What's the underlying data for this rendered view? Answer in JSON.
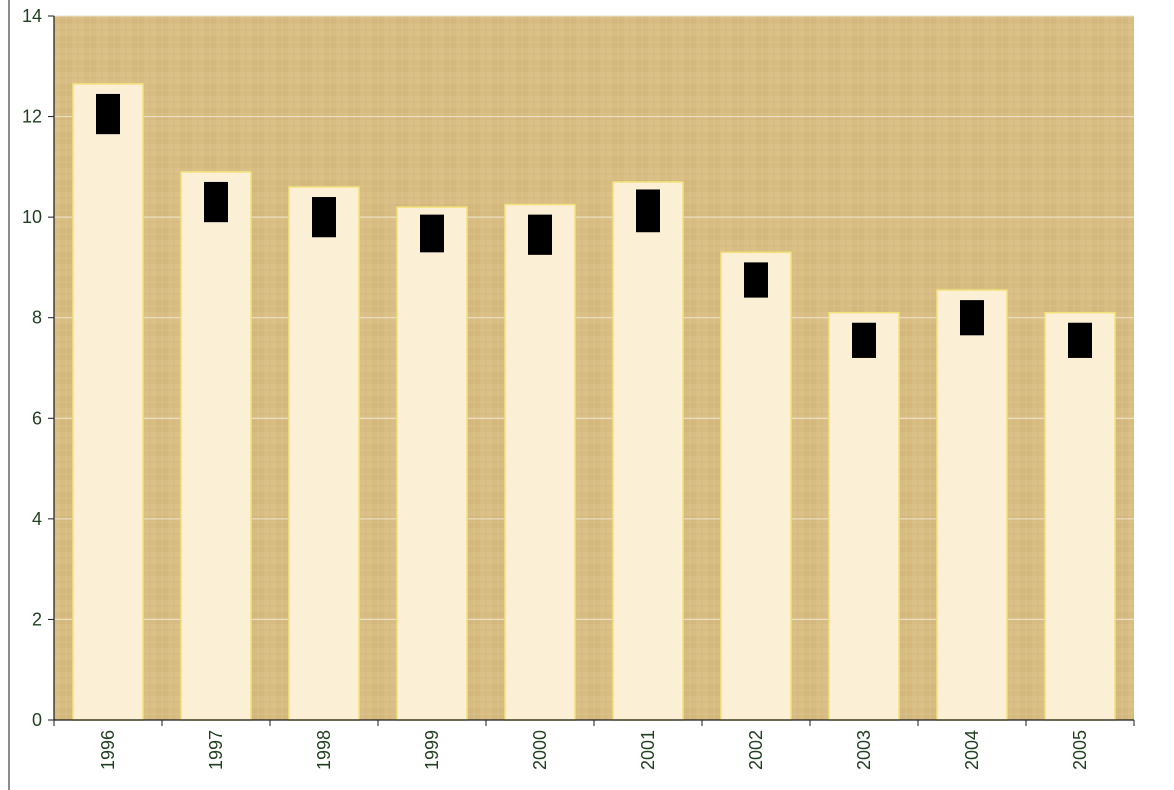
{
  "chart_data": {
    "type": "bar",
    "title": "",
    "xlabel": "",
    "ylabel": "",
    "categories": [
      "1996",
      "1997",
      "1998",
      "1999",
      "2000",
      "2001",
      "2002",
      "2003",
      "2004",
      "2005"
    ],
    "values": [
      12.65,
      10.9,
      10.6,
      10.2,
      10.25,
      10.7,
      9.3,
      8.1,
      8.55,
      8.1
    ],
    "error_markers": [
      {
        "low": 11.65,
        "high": 12.45
      },
      {
        "low": 9.9,
        "high": 10.7
      },
      {
        "low": 9.6,
        "high": 10.4
      },
      {
        "low": 9.3,
        "high": 10.05
      },
      {
        "low": 9.25,
        "high": 10.05
      },
      {
        "low": 9.7,
        "high": 10.55
      },
      {
        "low": 8.4,
        "high": 9.1
      },
      {
        "low": 7.2,
        "high": 7.9
      },
      {
        "low": 7.65,
        "high": 8.35
      },
      {
        "low": 7.2,
        "high": 7.9
      }
    ],
    "ylim": [
      0,
      14
    ],
    "yticks": [
      "0",
      "2",
      "4",
      "6",
      "8",
      "10",
      "12",
      "14"
    ],
    "grid": true,
    "legend": "none",
    "colors": {
      "plot_background": "#d9bf86",
      "bar_fill": "#fbefd6",
      "bar_border": "#f3e27a",
      "marker": "#000000",
      "gridline": "#efe6cf",
      "axis": "#1a1a1a",
      "tick_text": "#1f3f1f"
    }
  }
}
